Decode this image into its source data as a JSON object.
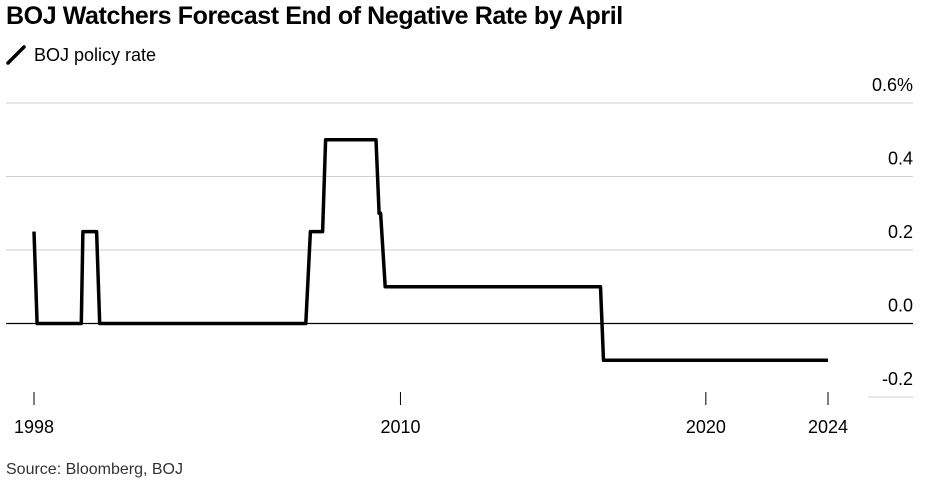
{
  "title": "BOJ Watchers Forecast End of Negative Rate by April",
  "source": "Source: Bloomberg, BOJ",
  "chart_data": {
    "type": "line",
    "legend_position": "top-left",
    "grid": true,
    "ylim": [
      -0.2,
      0.6
    ],
    "y_ticks": [
      {
        "value": 0.6,
        "label": "0.6%"
      },
      {
        "value": 0.4,
        "label": "0.4"
      },
      {
        "value": 0.2,
        "label": "0.2"
      },
      {
        "value": 0.0,
        "label": "0.0"
      },
      {
        "value": -0.2,
        "label": "-0.2"
      }
    ],
    "x_ticks": [
      {
        "value": 1998,
        "label": "1998"
      },
      {
        "value": 2010,
        "label": "2010"
      },
      {
        "value": 2020,
        "label": "2020"
      },
      {
        "value": 2024,
        "label": "2024"
      }
    ],
    "xlim": [
      1998,
      2024
    ],
    "series": [
      {
        "name": "BOJ policy rate",
        "color": "#000000",
        "x": [
          1998.0,
          1998.1,
          1999.55,
          1999.6,
          2000.05,
          2000.15,
          2006.9,
          2007.05,
          2007.45,
          2007.55,
          2009.2,
          2009.3,
          2009.35,
          2009.5,
          2016.55,
          2016.65,
          2024.0
        ],
        "y": [
          0.25,
          0.0,
          0.0,
          0.25,
          0.25,
          0.0,
          0.0,
          0.25,
          0.25,
          0.5,
          0.5,
          0.3,
          0.3,
          0.1,
          0.1,
          -0.1,
          -0.1
        ]
      }
    ]
  }
}
